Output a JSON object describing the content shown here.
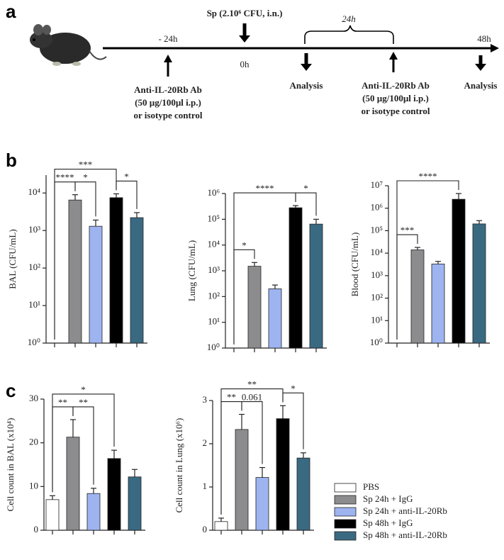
{
  "panel_labels": [
    "a",
    "b",
    "c"
  ],
  "timeline": {
    "dose": "Sp (2.10⁶ CFU, i.n.)",
    "interval": "24h",
    "times": [
      "- 24h",
      "0h",
      "48h"
    ],
    "treatment": [
      "Anti-IL-20Rb Ab",
      "(50 µg/100µl i.p.)",
      "or isotype control"
    ],
    "analysis": "Analysis"
  },
  "legend": {
    "entries": [
      {
        "name": "PBS",
        "color": "#ffffff"
      },
      {
        "name": "Sp 24h + IgG",
        "color": "#8c8c8e"
      },
      {
        "name": "Sp 24h + anti-IL-20Rb",
        "color": "#9db4f0"
      },
      {
        "name": "Sp 48h + IgG",
        "color": "#000000"
      },
      {
        "name": "Sp 48h + anti-IL-20Rb",
        "color": "#3a6a82"
      }
    ]
  },
  "chart_data": [
    {
      "type": "bar",
      "y_label": "BAL (CFU/mL)",
      "log_scale": true,
      "categories": [
        null,
        null,
        null,
        null,
        null
      ],
      "values": [
        null,
        6500,
        1300,
        7500,
        2200
      ],
      "errors": [
        null,
        2500,
        600,
        2000,
        800
      ],
      "ylim": [
        1,
        30000
      ],
      "yticks": [
        {
          "value": 1,
          "label": "10⁰"
        },
        {
          "value": 10,
          "label": "10¹"
        },
        {
          "value": 100,
          "label": "10²"
        },
        {
          "value": 1000,
          "label": "10³"
        },
        {
          "value": 10000,
          "label": "10⁴"
        }
      ],
      "annotations": [
        {
          "pair": [
            0,
            1
          ],
          "label": "****"
        },
        {
          "pair": [
            1,
            2
          ],
          "label": "*"
        },
        {
          "pair": [
            0,
            3
          ],
          "label": "***"
        },
        {
          "pair": [
            3,
            4
          ],
          "label": "*"
        }
      ]
    },
    {
      "type": "bar",
      "y_label": "Lung (CFU/mL)",
      "log_scale": true,
      "categories": [
        null,
        null,
        null,
        null,
        null
      ],
      "values": [
        null,
        1500,
        200,
        280000,
        65000
      ],
      "errors": [
        null,
        600,
        80,
        60000,
        35000
      ],
      "ylim": [
        1,
        1000000
      ],
      "yticks": [
        {
          "value": 1,
          "label": "10⁰"
        },
        {
          "value": 10,
          "label": "10¹"
        },
        {
          "value": 100,
          "label": "10²"
        },
        {
          "value": 1000,
          "label": "10³"
        },
        {
          "value": 10000,
          "label": "10⁴"
        },
        {
          "value": 100000,
          "label": "10⁵"
        },
        {
          "value": 1000000,
          "label": "10⁶"
        }
      ],
      "annotations": [
        {
          "pair": [
            0,
            1
          ],
          "label": "*"
        },
        {
          "pair": [
            0,
            3
          ],
          "label": "****"
        },
        {
          "pair": [
            3,
            4
          ],
          "label": "*"
        }
      ]
    },
    {
      "type": "bar",
      "y_label": "Blood (CFU/mL)",
      "log_scale": true,
      "categories": [
        null,
        null,
        null,
        null,
        null
      ],
      "values": [
        null,
        14000,
        3300,
        2500000,
        200000
      ],
      "errors": [
        null,
        4000,
        1000,
        2000000,
        80000
      ],
      "ylim": [
        1,
        10000000
      ],
      "yticks": [
        {
          "value": 1,
          "label": "10⁰"
        },
        {
          "value": 10,
          "label": "10¹"
        },
        {
          "value": 100,
          "label": "10²"
        },
        {
          "value": 1000,
          "label": "10³"
        },
        {
          "value": 10000,
          "label": "10⁴"
        },
        {
          "value": 100000,
          "label": "10⁵"
        },
        {
          "value": 1000000,
          "label": "10⁶"
        },
        {
          "value": 10000000,
          "label": "10⁷"
        }
      ],
      "annotations": [
        {
          "pair": [
            0,
            1
          ],
          "label": "***"
        },
        {
          "pair": [
            0,
            3
          ],
          "label": "****"
        }
      ]
    },
    {
      "type": "bar",
      "y_label": "Cell count in BAL (x10⁴)",
      "log_scale": false,
      "categories": [
        null,
        null,
        null,
        null,
        null
      ],
      "values": [
        7,
        21.3,
        8.4,
        16.4,
        12.2
      ],
      "errors": [
        0.9,
        4,
        1.2,
        1.9,
        1.7
      ],
      "ylim": [
        0,
        30
      ],
      "yticks": [
        0,
        10,
        20,
        30
      ],
      "annotations": [
        {
          "pair": [
            0,
            1
          ],
          "label": "**"
        },
        {
          "pair": [
            1,
            2
          ],
          "label": "**"
        },
        {
          "pair": [
            0,
            3
          ],
          "label": "*"
        }
      ]
    },
    {
      "type": "bar",
      "y_label": "Cell count in Lung (x10⁶)",
      "log_scale": false,
      "categories": [
        null,
        null,
        null,
        null,
        null
      ],
      "values": [
        0.2,
        2.33,
        1.22,
        2.58,
        1.67
      ],
      "errors": [
        0.08,
        0.35,
        0.23,
        0.3,
        0.12
      ],
      "ylim": [
        0,
        3
      ],
      "yticks": [
        0,
        1,
        2,
        3
      ],
      "annotations": [
        {
          "pair": [
            0,
            1
          ],
          "label": "**"
        },
        {
          "pair": [
            1,
            2
          ],
          "label": "0.061"
        },
        {
          "pair": [
            0,
            3
          ],
          "label": "**"
        },
        {
          "pair": [
            3,
            4
          ],
          "label": "*"
        }
      ]
    }
  ]
}
